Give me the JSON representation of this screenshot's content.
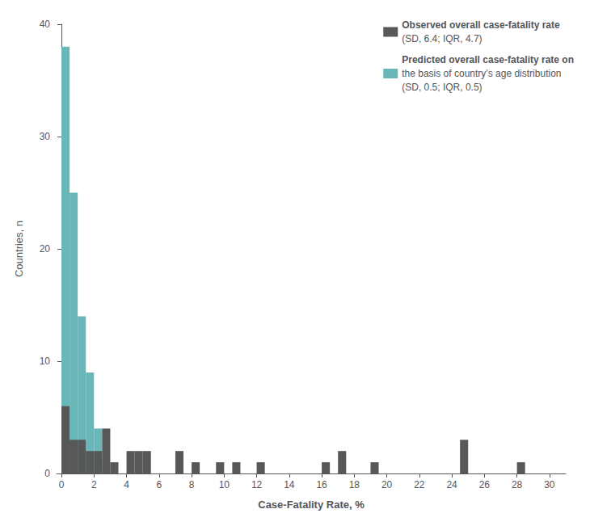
{
  "chart_data": {
    "type": "bar",
    "xlabel": "Case-Fatality Rate, %",
    "ylabel": "Countries, n",
    "bin_width": 0.5,
    "series": [
      {
        "name": "Predicted overall case-fatality rate on",
        "legend_text": [
          "the basis of country’s age distribution",
          "(SD, 0.5; IQR, 0.5)"
        ],
        "color": "#6ab7ba",
        "x": [
          0.0,
          0.5,
          1.0,
          1.5,
          2.0,
          2.5
        ],
        "values": [
          38,
          25,
          14,
          9,
          4,
          1
        ]
      },
      {
        "name": "Observed overall case-fatality rate",
        "legend_text": [
          "(SD, 6.4; IQR, 4.7)"
        ],
        "color": "#585858",
        "x": [
          0.0,
          0.5,
          1.0,
          1.5,
          2.0,
          2.5,
          3.0,
          4.0,
          4.5,
          5.0,
          7.0,
          8.0,
          9.5,
          10.5,
          12.0,
          16.0,
          17.0,
          19.0,
          24.5,
          28.0
        ],
        "values": [
          6,
          3,
          3,
          2,
          2,
          4,
          1,
          2,
          2,
          2,
          2,
          1,
          1,
          1,
          1,
          1,
          2,
          1,
          3,
          1
        ]
      }
    ],
    "xlim": [
      -0.3,
      31
    ],
    "xticks": [
      0,
      2,
      4,
      6,
      8,
      10,
      12,
      14,
      16,
      18,
      20,
      22,
      24,
      26,
      28,
      30
    ],
    "ylim": [
      0,
      40
    ],
    "yticks": [
      0,
      10,
      20,
      30,
      40
    ],
    "grid": false,
    "legend": "upper right"
  }
}
